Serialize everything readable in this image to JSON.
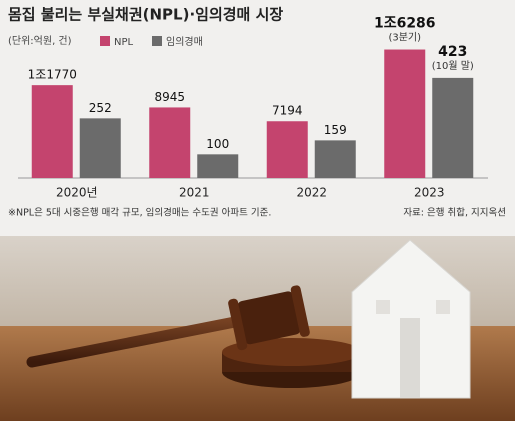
{
  "chart_data": {
    "type": "bar",
    "title": "몸집 불리는 부실채권(NPL)·임의경매 시장",
    "subtitle": "(단위:억원, 건)",
    "categories": [
      "2020년",
      "2021",
      "2022",
      "2023"
    ],
    "series": [
      {
        "name": "NPL",
        "color": "#c4446e",
        "values": [
          11770,
          8945,
          7194,
          16286
        ],
        "value_labels": [
          "1조1770",
          "8945",
          "7194",
          "1조6286"
        ]
      },
      {
        "name": "임의경매",
        "color": "#6b6b6b",
        "values": [
          252,
          100,
          159,
          423
        ],
        "axis": "y2"
      }
    ],
    "annotations": [
      "(3분기)",
      "(10월 말)"
    ],
    "ylim": [
      0,
      18000
    ],
    "y2lim": [
      0,
      600
    ],
    "footnote": "※NPL은 5대 시중은행 매각 규모, 임의경매는 수도권 아파트 기준.",
    "source": "자료: 은행 취합, 지지옥션"
  }
}
